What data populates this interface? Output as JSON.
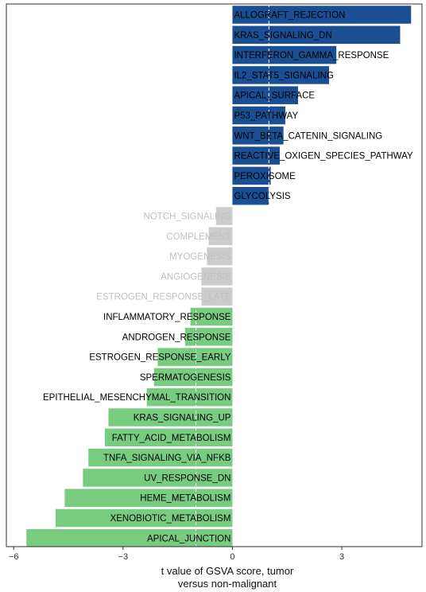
{
  "chart_data": {
    "type": "bar",
    "orientation": "horizontal",
    "xlabel_lines": [
      "t value of GSVA score, tumor",
      "versus non-malignant"
    ],
    "xlim": [
      -6.2,
      5.2
    ],
    "xticks": [
      -6,
      -3,
      0,
      3
    ],
    "tick_labels": [
      "−6",
      "−3",
      "0",
      "3"
    ],
    "threshold_lines": [
      -1,
      1
    ],
    "grid": false,
    "legend": "none",
    "colors": {
      "up": "#1b4f93",
      "ns": "#cccccc",
      "down": "#77cc80",
      "ns_text": "#bfbfbf",
      "sig_text": "#000000",
      "threshold": "#ffffff"
    },
    "categories": [
      "ALLOGRAFT_REJECTION",
      "KRAS_SIGNALING_DN",
      "INTERFERON_GAMMA_RESPONSE",
      "IL2_STAT5_SIGNALING",
      "APICAL_SURFACE",
      "P53_PATHWAY",
      "WNT_BETA_CATENIN_SIGNALING",
      "REACTIVE_OXIGEN_SPECIES_PATHWAY",
      "PEROXISOME",
      "GLYCOLYSIS",
      "NOTCH_SIGNALING",
      "COMPLEMENT",
      "MYOGENESIS",
      "ANGIOGENESIS",
      "ESTROGEN_RESPONSE_LATE",
      "INFLAMMATORY_RESPONSE",
      "ANDROGEN_RESPONSE",
      "ESTROGEN_RESPONSE_EARLY",
      "SPERMATOGENESIS",
      "EPITHELIAL_MESENCHYMAL_TRANSITION",
      "KRAS_SIGNALING_UP",
      "FATTY_ACID_METABOLISM",
      "TNFA_SIGNALING_VIA_NFKB",
      "UV_RESPONSE_DN",
      "HEME_METABOLISM",
      "XENOBIOTIC_METABOLISM",
      "APICAL_JUNCTION"
    ],
    "values": [
      4.9,
      4.6,
      2.85,
      2.65,
      1.8,
      1.45,
      1.4,
      1.3,
      1.05,
      1.0,
      -0.45,
      -0.65,
      -0.7,
      -0.85,
      -0.85,
      -1.15,
      -1.3,
      -2.05,
      -2.15,
      -2.35,
      -3.4,
      -3.5,
      -3.95,
      -4.1,
      -4.6,
      -4.85,
      -5.65
    ],
    "groups": [
      "up",
      "up",
      "up",
      "up",
      "up",
      "up",
      "up",
      "up",
      "up",
      "up",
      "ns",
      "ns",
      "ns",
      "ns",
      "ns",
      "down",
      "down",
      "down",
      "down",
      "down",
      "down",
      "down",
      "down",
      "down",
      "down",
      "down",
      "down"
    ]
  }
}
